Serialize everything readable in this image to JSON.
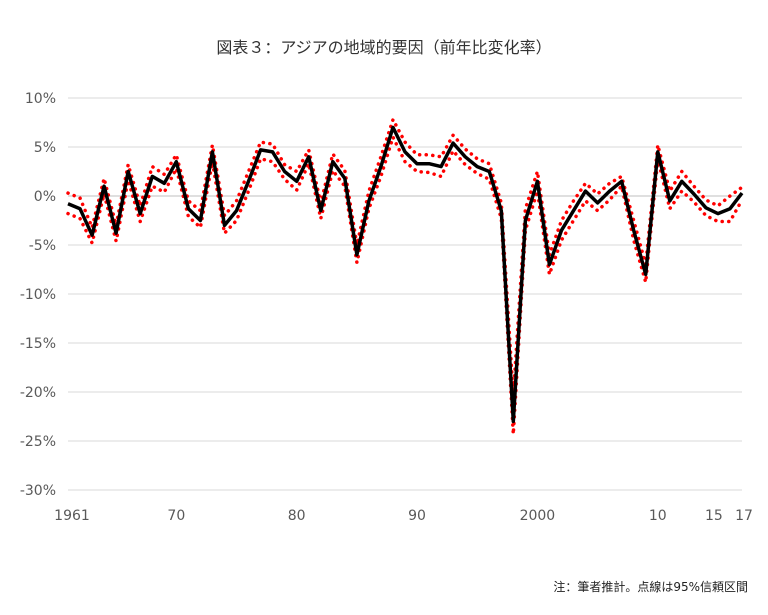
{
  "chart_data": {
    "type": "line",
    "title": "図表３：アジアの地域的要因（前年比変化率）",
    "note": "注：筆者推計。点線は95%信頼区間",
    "ylim": [
      -30,
      10
    ],
    "yticks": [
      10,
      5,
      0,
      -5,
      -10,
      -15,
      -20,
      -25,
      -30
    ],
    "ytick_labels": [
      "10%",
      "5%",
      "0%",
      "-5%",
      "-10%",
      "-15%",
      "-20%",
      "-25%",
      "-30%"
    ],
    "xlim": [
      1961,
      2017
    ],
    "xtick_values": [
      1961,
      1970,
      1980,
      1990,
      2000,
      2010,
      2015,
      2017
    ],
    "xtick_labels": [
      "1961",
      "70",
      "80",
      "90",
      "2000",
      "10",
      "15",
      "17"
    ],
    "grid": true,
    "x": [
      1961,
      1962,
      1963,
      1964,
      1965,
      1966,
      1967,
      1968,
      1969,
      1970,
      1971,
      1972,
      1973,
      1974,
      1975,
      1976,
      1977,
      1978,
      1979,
      1980,
      1981,
      1982,
      1983,
      1984,
      1985,
      1986,
      1987,
      1988,
      1989,
      1990,
      1991,
      1992,
      1993,
      1994,
      1995,
      1996,
      1997,
      1998,
      1999,
      2000,
      2001,
      2002,
      2003,
      2004,
      2005,
      2006,
      2007,
      2008,
      2009,
      2010,
      2011,
      2012,
      2013,
      2014,
      2015,
      2016,
      2017
    ],
    "series": [
      {
        "role": "estimate",
        "color": "#000000",
        "values": [
          -0.8,
          -1.3,
          -4.0,
          1.0,
          -3.8,
          2.5,
          -1.8,
          2.0,
          1.3,
          3.5,
          -1.3,
          -2.5,
          4.5,
          -3.0,
          -1.5,
          1.5,
          4.7,
          4.5,
          2.5,
          1.5,
          4.0,
          -1.5,
          3.5,
          1.8,
          -6.0,
          -0.5,
          3.0,
          7.0,
          4.5,
          3.3,
          3.3,
          3.0,
          5.4,
          4.0,
          3.0,
          2.5,
          -1.5,
          -23.0,
          -2.5,
          1.5,
          -7.0,
          -3.5,
          -1.5,
          0.5,
          -0.7,
          0.5,
          1.5,
          -3.5,
          -8.0,
          4.5,
          -0.5,
          1.5,
          0.2,
          -1.2,
          -1.8,
          -1.3,
          0.3
        ]
      },
      {
        "role": "upper-95ci",
        "color": "#ff0000",
        "values": [
          0.3,
          -0.2,
          -3.2,
          1.8,
          -3.0,
          3.2,
          -1.0,
          3.0,
          2.2,
          4.2,
          -0.5,
          -1.5,
          5.2,
          -2.0,
          -0.5,
          2.5,
          5.5,
          5.3,
          3.2,
          2.5,
          4.7,
          -0.7,
          4.3,
          2.6,
          -5.0,
          0.5,
          4.0,
          7.8,
          5.5,
          4.2,
          4.2,
          4.0,
          6.2,
          4.8,
          3.8,
          3.3,
          -0.7,
          -20.5,
          -1.3,
          2.5,
          -6.0,
          -2.5,
          -0.5,
          1.3,
          0.2,
          1.3,
          2.0,
          -2.5,
          -7.0,
          5.2,
          0.5,
          2.5,
          1.0,
          -0.4,
          -1.0,
          0,
          0.9
        ]
      },
      {
        "role": "lower-95ci",
        "color": "#ff0000",
        "values": [
          -1.8,
          -2.3,
          -4.8,
          0.2,
          -4.6,
          1.6,
          -2.6,
          1.0,
          0.4,
          2.8,
          -2.1,
          -3.2,
          3.5,
          -3.8,
          -2.5,
          0.5,
          3.8,
          3.5,
          1.7,
          0.6,
          3.3,
          -2.3,
          2.6,
          1.0,
          -6.8,
          -1.3,
          2.0,
          6.0,
          3.5,
          2.5,
          2.4,
          2.0,
          4.6,
          3.2,
          2.3,
          1.7,
          -2.3,
          -24.3,
          -3.5,
          0.5,
          -8.0,
          -4.5,
          -2.5,
          -0.5,
          -1.5,
          -0.4,
          1.0,
          -4.5,
          -8.8,
          3.8,
          -1.3,
          0.5,
          -0.6,
          -2.0,
          -2.6,
          -2.6,
          -0.4
        ]
      }
    ]
  }
}
